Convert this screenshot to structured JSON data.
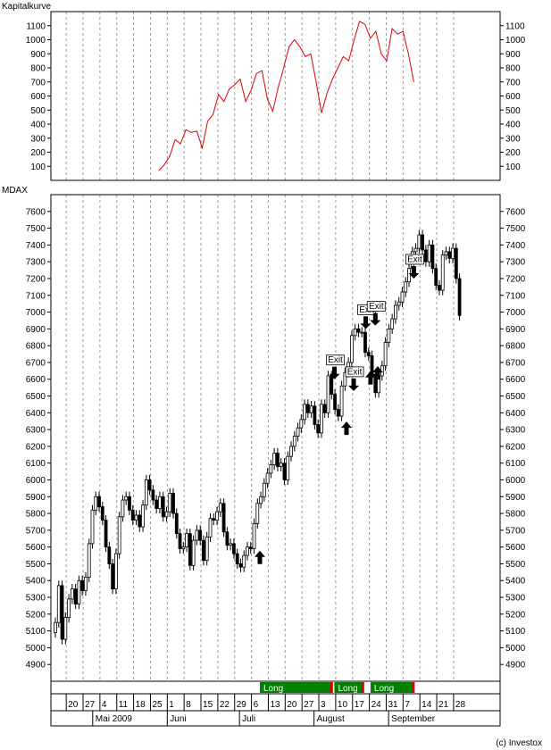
{
  "top_panel": {
    "title": "Kapitalkurve"
  },
  "bottom_panel": {
    "title": "MDAX"
  },
  "copyright": "(c) Investox",
  "colors": {
    "equity": "#e00000",
    "position": "#008000",
    "grid": "#999999",
    "up": "#ffffff",
    "down": "#000000"
  },
  "chart_data": [
    {
      "type": "line",
      "title": "Kapitalkurve",
      "ylim": [
        0,
        1200
      ],
      "yticks": [
        100,
        200,
        300,
        400,
        500,
        600,
        700,
        800,
        900,
        1000,
        1100
      ],
      "x_start_day": 43,
      "values": [
        70,
        110,
        170,
        290,
        260,
        360,
        340,
        350,
        230,
        420,
        470,
        610,
        560,
        650,
        680,
        720,
        560,
        640,
        760,
        780,
        580,
        490,
        660,
        800,
        950,
        1000,
        950,
        880,
        900,
        700,
        480,
        620,
        720,
        800,
        880,
        850,
        1000,
        1130,
        1110,
        1010,
        1060,
        900,
        850,
        1080,
        1040,
        1060,
        900,
        700
      ],
      "grid": true
    },
    {
      "type": "candlestick",
      "title": "MDAX",
      "ylim": [
        4800,
        7700
      ],
      "yticks": [
        4900,
        5000,
        5100,
        5200,
        5300,
        5400,
        5500,
        5600,
        5700,
        5800,
        5900,
        6000,
        6100,
        6200,
        6300,
        6400,
        6500,
        6600,
        6700,
        6800,
        6900,
        7000,
        7100,
        7200,
        7300,
        7400,
        7500,
        7600
      ],
      "closes": [
        5150,
        5370,
        5050,
        5180,
        5290,
        5350,
        5260,
        5400,
        5340,
        5420,
        5620,
        5820,
        5900,
        5840,
        5760,
        5600,
        5500,
        5350,
        5560,
        5780,
        5880,
        5900,
        5820,
        5760,
        5790,
        5720,
        5850,
        6000,
        5940,
        5880,
        5830,
        5900,
        5780,
        5810,
        5920,
        5800,
        5680,
        5590,
        5600,
        5680,
        5490,
        5640,
        5700,
        5640,
        5520,
        5660,
        5770,
        5760,
        5810,
        5860,
        5690,
        5610,
        5620,
        5560,
        5500,
        5480,
        5550,
        5600,
        5590,
        5740,
        5860,
        5900,
        5980,
        6040,
        6090,
        6160,
        6080,
        6100,
        6000,
        6140,
        6200,
        6260,
        6310,
        6360,
        6450,
        6400,
        6440,
        6330,
        6280,
        6450,
        6400,
        6620,
        6510,
        6420,
        6380,
        6560,
        6640,
        6700,
        6860,
        6900,
        6880,
        6880,
        6760,
        6740,
        6630,
        6520,
        6620,
        6680,
        6820,
        6900,
        6960,
        7040,
        7060,
        7120,
        7180,
        7260,
        7360,
        7380,
        7460,
        7370,
        7300,
        7400,
        7260,
        7160,
        7130,
        7340,
        7360,
        7320,
        7380,
        7200,
        6980
      ],
      "signals": [
        {
          "day": 85,
          "type": "long",
          "price": 5530
        },
        {
          "day": 116,
          "type": "exit",
          "price": 6600
        },
        {
          "day": 121,
          "type": "long",
          "price": 6300
        },
        {
          "day": 124,
          "type": "exit",
          "price": 6530
        },
        {
          "day": 129,
          "type": "exit",
          "price": 6900
        },
        {
          "day": 131,
          "type": "long",
          "price": 6600
        },
        {
          "day": 133,
          "type": "exit",
          "price": 6920
        },
        {
          "day": 134,
          "type": "long",
          "price": 6630
        },
        {
          "day": 149,
          "type": "exit",
          "price": 7200
        }
      ],
      "exit_label": "Exit",
      "positions": [
        {
          "start_day": 85,
          "end_day": 115,
          "label": "Long"
        },
        {
          "start_day": 116,
          "end_day": 128,
          "label": "Long"
        },
        {
          "start_day": 131,
          "end_day": 149,
          "label": "Long"
        }
      ],
      "grid": true
    }
  ],
  "x_axis": {
    "start_date": "2009-04-14",
    "day_labels": [
      {
        "day": 6,
        "text": "20"
      },
      {
        "day": 13,
        "text": "27"
      },
      {
        "day": 20,
        "text": "4"
      },
      {
        "day": 27,
        "text": "11"
      },
      {
        "day": 34,
        "text": "18"
      },
      {
        "day": 41,
        "text": "25"
      },
      {
        "day": 48,
        "text": "1"
      },
      {
        "day": 55,
        "text": "8"
      },
      {
        "day": 62,
        "text": "15"
      },
      {
        "day": 69,
        "text": "22"
      },
      {
        "day": 76,
        "text": "29"
      },
      {
        "day": 83,
        "text": "6"
      },
      {
        "day": 90,
        "text": "13"
      },
      {
        "day": 97,
        "text": "20"
      },
      {
        "day": 104,
        "text": "27"
      },
      {
        "day": 111,
        "text": "3"
      },
      {
        "day": 118,
        "text": "10"
      },
      {
        "day": 125,
        "text": "17"
      },
      {
        "day": 132,
        "text": "24"
      },
      {
        "day": 139,
        "text": "31"
      },
      {
        "day": 146,
        "text": "7"
      },
      {
        "day": 153,
        "text": "14"
      },
      {
        "day": 160,
        "text": "21"
      },
      {
        "day": 167,
        "text": "28"
      }
    ],
    "month_labels": [
      {
        "day": 17,
        "text": "Mai 2009"
      },
      {
        "day": 48,
        "text": "Juni"
      },
      {
        "day": 78,
        "text": "Juli"
      },
      {
        "day": 109,
        "text": "August"
      },
      {
        "day": 140,
        "text": "September"
      }
    ]
  }
}
